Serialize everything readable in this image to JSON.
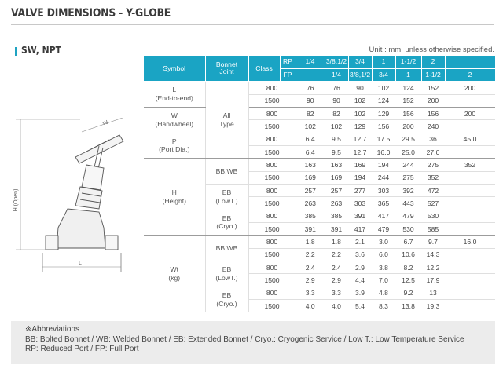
{
  "page_title": "VALVE DIMENSIONS - Y-GLOBE",
  "section_title": "SW, NPT",
  "unit_note": "Unit : mm, unless otherwise specified.",
  "diagram_labels": {
    "width": "W",
    "height": "H (Open)",
    "length": "L"
  },
  "table": {
    "header": {
      "symbol": "Symbol",
      "bonnet_joint": [
        "Bonnet",
        "Joint"
      ],
      "class": "Class",
      "rp": "RP",
      "fp": "FP",
      "rp_sizes": [
        "1/4",
        "3/8,1/2",
        "3/4",
        "1",
        "1-1/2",
        "2",
        ""
      ],
      "fp_sizes": [
        "",
        "1/4",
        "3/8,1/2",
        "3/4",
        "1",
        "1-1/2",
        "2"
      ]
    },
    "groups": [
      {
        "symbol": [
          "L",
          "(End-to-end)"
        ],
        "bonnet": [
          "All",
          "Type"
        ],
        "bonnet_span": 6,
        "rows": [
          {
            "class": "800",
            "values": [
              "76",
              "76",
              "90",
              "102",
              "124",
              "152",
              "200"
            ]
          },
          {
            "class": "1500",
            "values": [
              "90",
              "90",
              "102",
              "124",
              "152",
              "200",
              ""
            ]
          }
        ]
      },
      {
        "symbol": [
          "W",
          "(Handwheel)"
        ],
        "rows": [
          {
            "class": "800",
            "values": [
              "82",
              "82",
              "102",
              "129",
              "156",
              "156",
              "200"
            ]
          },
          {
            "class": "1500",
            "values": [
              "102",
              "102",
              "129",
              "156",
              "200",
              "240",
              ""
            ]
          }
        ]
      },
      {
        "symbol": [
          "P",
          "(Port Dia.)"
        ],
        "rows": [
          {
            "class": "800",
            "values": [
              "6.4",
              "9.5",
              "12.7",
              "17.5",
              "29.5",
              "36",
              "45.0"
            ]
          },
          {
            "class": "1500",
            "values": [
              "6.4",
              "9.5",
              "12.7",
              "16.0",
              "25.0",
              "27.0",
              ""
            ]
          }
        ]
      },
      {
        "symbol": [
          "H",
          "(Height)"
        ],
        "bonnets": [
          {
            "label": [
              "BB,WB"
            ],
            "rows": [
              {
                "class": "800",
                "values": [
                  "163",
                  "163",
                  "169",
                  "194",
                  "244",
                  "275",
                  "352"
                ]
              },
              {
                "class": "1500",
                "values": [
                  "169",
                  "169",
                  "194",
                  "244",
                  "275",
                  "352",
                  ""
                ]
              }
            ]
          },
          {
            "label": [
              "EB",
              "(LowT.)"
            ],
            "rows": [
              {
                "class": "800",
                "values": [
                  "257",
                  "257",
                  "277",
                  "303",
                  "392",
                  "472",
                  ""
                ]
              },
              {
                "class": "1500",
                "values": [
                  "263",
                  "263",
                  "303",
                  "365",
                  "443",
                  "527",
                  ""
                ]
              }
            ]
          },
          {
            "label": [
              "EB",
              "(Cryo.)"
            ],
            "rows": [
              {
                "class": "800",
                "values": [
                  "385",
                  "385",
                  "391",
                  "417",
                  "479",
                  "530",
                  ""
                ]
              },
              {
                "class": "1500",
                "values": [
                  "391",
                  "391",
                  "417",
                  "479",
                  "530",
                  "585",
                  ""
                ]
              }
            ]
          }
        ]
      },
      {
        "symbol": [
          "Wt",
          "(kg)"
        ],
        "bonnets": [
          {
            "label": [
              "BB,WB"
            ],
            "rows": [
              {
                "class": "800",
                "values": [
                  "1.8",
                  "1.8",
                  "2.1",
                  "3.0",
                  "6.7",
                  "9.7",
                  "16.0"
                ]
              },
              {
                "class": "1500",
                "values": [
                  "2.2",
                  "2.2",
                  "3.6",
                  "6.0",
                  "10.6",
                  "14.3",
                  ""
                ]
              }
            ]
          },
          {
            "label": [
              "EB",
              "(LowT.)"
            ],
            "rows": [
              {
                "class": "800",
                "values": [
                  "2.4",
                  "2.4",
                  "2.9",
                  "3.8",
                  "8.2",
                  "12.2",
                  ""
                ]
              },
              {
                "class": "1500",
                "values": [
                  "2.9",
                  "2.9",
                  "4.4",
                  "7.0",
                  "12.5",
                  "17.9",
                  ""
                ]
              }
            ]
          },
          {
            "label": [
              "EB",
              "(Cryo.)"
            ],
            "rows": [
              {
                "class": "800",
                "values": [
                  "3.3",
                  "3.3",
                  "3.9",
                  "4.8",
                  "9.2",
                  "13",
                  ""
                ]
              },
              {
                "class": "1500",
                "values": [
                  "4.0",
                  "4.0",
                  "5.4",
                  "8.3",
                  "13.8",
                  "19.3",
                  ""
                ]
              }
            ]
          }
        ]
      }
    ]
  },
  "abbreviations": {
    "title": "※Abbreviations",
    "lines": [
      "BB: Bolted Bonnet / WB: Welded Bonnet / EB: Extended Bonnet / Cryo.: Cryogenic Service / Low T.: Low Temperature Service",
      "RP: Reduced Port / FP: Full Port"
    ]
  },
  "colors": {
    "header_bg": "#1aa4c4",
    "accent": "#1fa3c2",
    "abbr_bg": "#ececec"
  }
}
